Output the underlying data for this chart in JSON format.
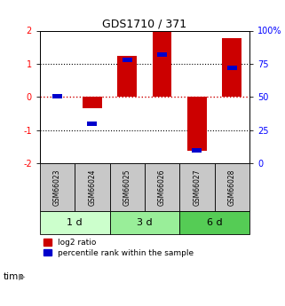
{
  "title": "GDS1710 / 371",
  "samples": [
    "GSM66023",
    "GSM66024",
    "GSM66025",
    "GSM66026",
    "GSM66027",
    "GSM66028"
  ],
  "groups": [
    {
      "label": "1 d",
      "samples": [
        0,
        1
      ],
      "color": "#ccffcc"
    },
    {
      "label": "3 d",
      "samples": [
        2,
        3
      ],
      "color": "#99ee99"
    },
    {
      "label": "6 d",
      "samples": [
        4,
        5
      ],
      "color": "#55cc55"
    }
  ],
  "log2_ratio": [
    0.02,
    -0.35,
    1.25,
    1.98,
    -1.62,
    1.78
  ],
  "percentile_rank": [
    50.5,
    30.0,
    78.0,
    82.0,
    10.0,
    72.0
  ],
  "ylim_left": [
    -2,
    2
  ],
  "ylim_right": [
    0,
    100
  ],
  "yticks_left": [
    -2,
    -1,
    0,
    1,
    2
  ],
  "yticks_right": [
    0,
    25,
    50,
    75,
    100
  ],
  "bar_color_red": "#cc0000",
  "bar_color_blue": "#0000cc",
  "bar_width": 0.55,
  "blue_bar_width": 0.28,
  "blue_bar_height": 0.13,
  "hline_color_red": "#cc0000",
  "gridline_color": "#000000",
  "bg_color": "#ffffff",
  "sample_gray": "#c8c8c8",
  "legend_red_label": "log2 ratio",
  "legend_blue_label": "percentile rank within the sample"
}
